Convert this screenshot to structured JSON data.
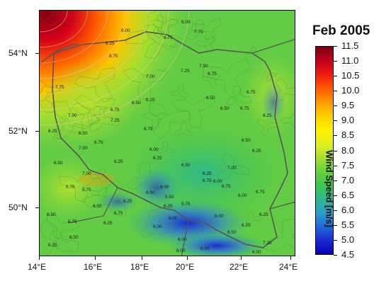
{
  "title": "Feb 2005",
  "colorbar": {
    "label": "Wind Speed [m/s]",
    "min": 4.5,
    "max": 11.5,
    "ticks": [
      "11.5",
      "11.0",
      "10.5",
      "10.0",
      "9.5",
      "9.0",
      "8.5",
      "8.0",
      "7.5",
      "7.0",
      "6.5",
      "6.0",
      "5.5",
      "5.0",
      "4.5"
    ],
    "colors": [
      "#7a0010",
      "#c0001a",
      "#ee1a10",
      "#ff5a00",
      "#ff9a00",
      "#ffce00",
      "#fff200",
      "#e2f01e",
      "#a8e032",
      "#66d23c",
      "#3cc650",
      "#2fb88a",
      "#2aa0c8",
      "#1f6ad8",
      "#1a2ad0",
      "#0a00b8"
    ]
  },
  "axes": {
    "lon_labels": [
      "14°E",
      "16°E",
      "18°E",
      "20°E",
      "22°E",
      "24°E"
    ],
    "lat_labels": [
      "54°N",
      "52°N",
      "50°N"
    ]
  },
  "contour_labels": [
    "6.00",
    "8.75",
    "6.00",
    "7.75",
    "8.75",
    "6.25",
    "7.50",
    "7.25",
    "6.75",
    "7.75",
    "7.00",
    "6.25",
    "6.50",
    "6.50",
    "6.75",
    "7.00",
    "6.25",
    "7.25",
    "6.50",
    "6.75",
    "6.75",
    "6.25",
    "7.00",
    "6.75",
    "6.75",
    "6.50",
    "6.25",
    "6.00",
    "6.50",
    "6.25",
    "6.50",
    "6.25",
    "6.75",
    "6.00",
    "5.75",
    "5.75",
    "6.25",
    "6.50",
    "6.00",
    "6.75",
    "6.00",
    "6.25",
    "6.50",
    "6.75",
    "6.25",
    "7.25",
    "6.75",
    "6.00",
    "6.50",
    "6.50",
    "7.00",
    "6.25",
    "5.50",
    "5.75",
    "6.50",
    "6.00",
    "6.75",
    "6.50",
    "6.25",
    "6.00",
    "6.00",
    "7.00",
    "6.00",
    "8.00",
    "6.25",
    "6.25",
    "6.00"
  ]
}
